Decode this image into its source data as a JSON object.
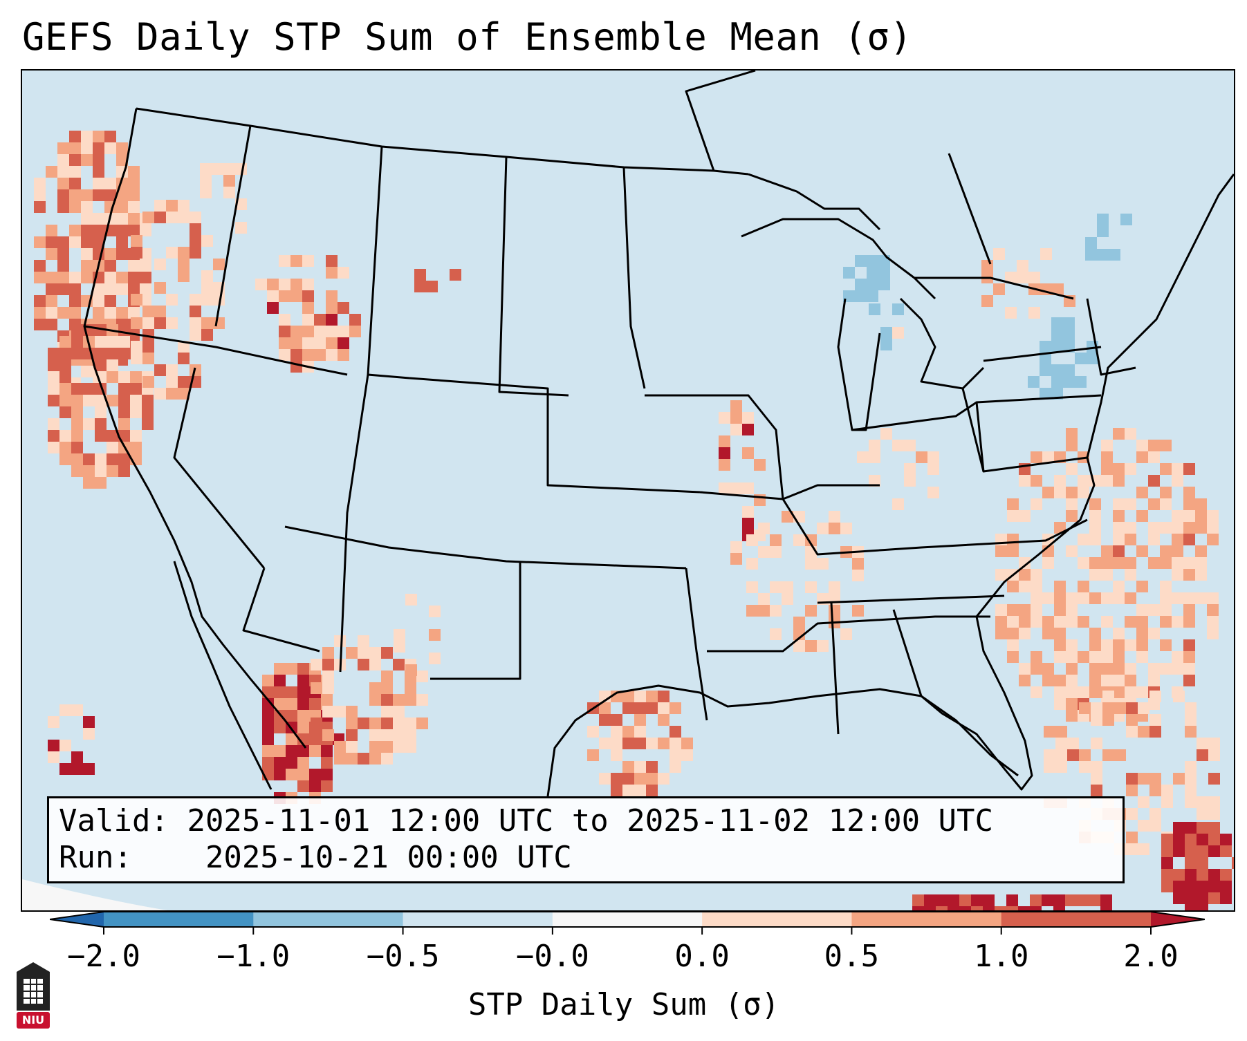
{
  "title": "GEFS Daily STP Sum of Ensemble Mean (σ)",
  "info": {
    "valid_label": "Valid:",
    "valid_value": "2025-11-01 12:00 UTC to 2025-11-02 12:00 UTC",
    "run_label": "Run:",
    "run_value": "2025-10-21 00:00 UTC"
  },
  "colorbar": {
    "label": "STP Daily Sum (σ)",
    "ticks": [
      "−2.0",
      "−1.0",
      "−0.5",
      "−0.0",
      "0.0",
      "0.5",
      "1.0",
      "2.0"
    ],
    "colors": [
      "#4393c3",
      "#92c5de",
      "#d1e5f0",
      "#f7f7f7",
      "#fddbc7",
      "#f4a582",
      "#d6604d"
    ],
    "extend_low": "#2166ac",
    "extend_high": "#b2182b"
  },
  "logo": {
    "text": "NIU",
    "color": "#c8102e"
  },
  "map": {
    "background": "#d1e5f0",
    "ocean_edge": "#f7f7f7"
  }
}
